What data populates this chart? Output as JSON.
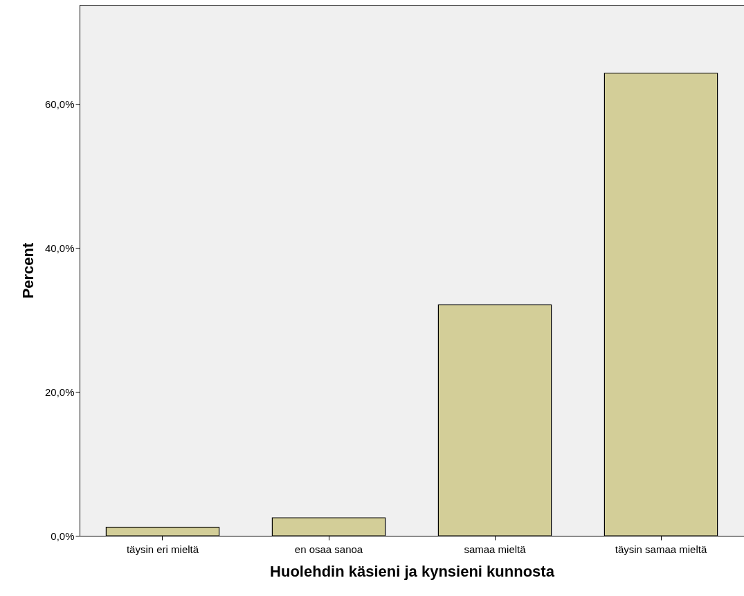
{
  "chart_data": {
    "type": "bar",
    "xlabel": "Huolehdin käsieni ja kynsieni kunnosta",
    "ylabel": "Percent",
    "categories": [
      "täysin eri mieltä",
      "en osaa sanoa",
      "samaa mieltä",
      "täysin samaa mieltä"
    ],
    "values": [
      1.2,
      2.5,
      32.1,
      64.3
    ],
    "color": "#d3ce98",
    "ylim": [
      0,
      73.8
    ],
    "yticks": [
      {
        "value": 0,
        "label": "0,0%"
      },
      {
        "value": 20,
        "label": "20,0%"
      },
      {
        "value": 40,
        "label": "40,0%"
      },
      {
        "value": 60,
        "label": "60,0%"
      }
    ],
    "grid": false
  }
}
